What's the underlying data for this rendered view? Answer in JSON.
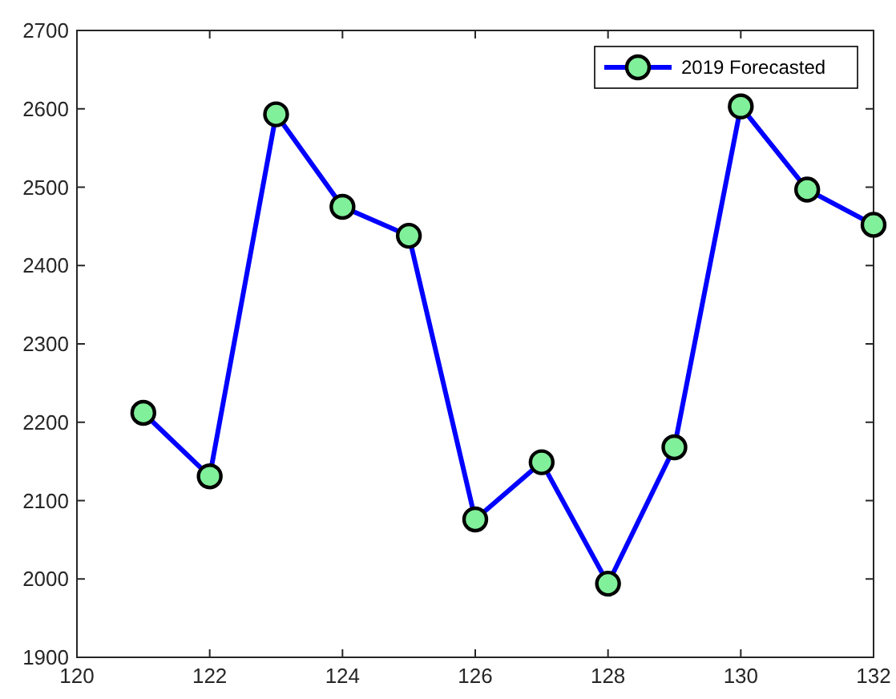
{
  "chart_data": {
    "type": "line",
    "x": [
      121,
      122,
      123,
      124,
      125,
      126,
      127,
      128,
      129,
      130,
      131,
      132
    ],
    "series": [
      {
        "name": "2019 Forecasted",
        "color": "#0000ff",
        "values": [
          2212,
          2131,
          2593,
          2475,
          2438,
          2076,
          2149,
          1994,
          2168,
          2603,
          2497,
          2452
        ]
      }
    ],
    "xlim": [
      120,
      132
    ],
    "xticks": [
      120,
      122,
      124,
      126,
      128,
      130,
      132
    ],
    "ylim": [
      1900,
      2700
    ],
    "yticks": [
      1900,
      2000,
      2100,
      2200,
      2300,
      2400,
      2500,
      2600,
      2700
    ],
    "grid": false,
    "legend": "top right",
    "marker": "circle",
    "line_style": "solid"
  }
}
